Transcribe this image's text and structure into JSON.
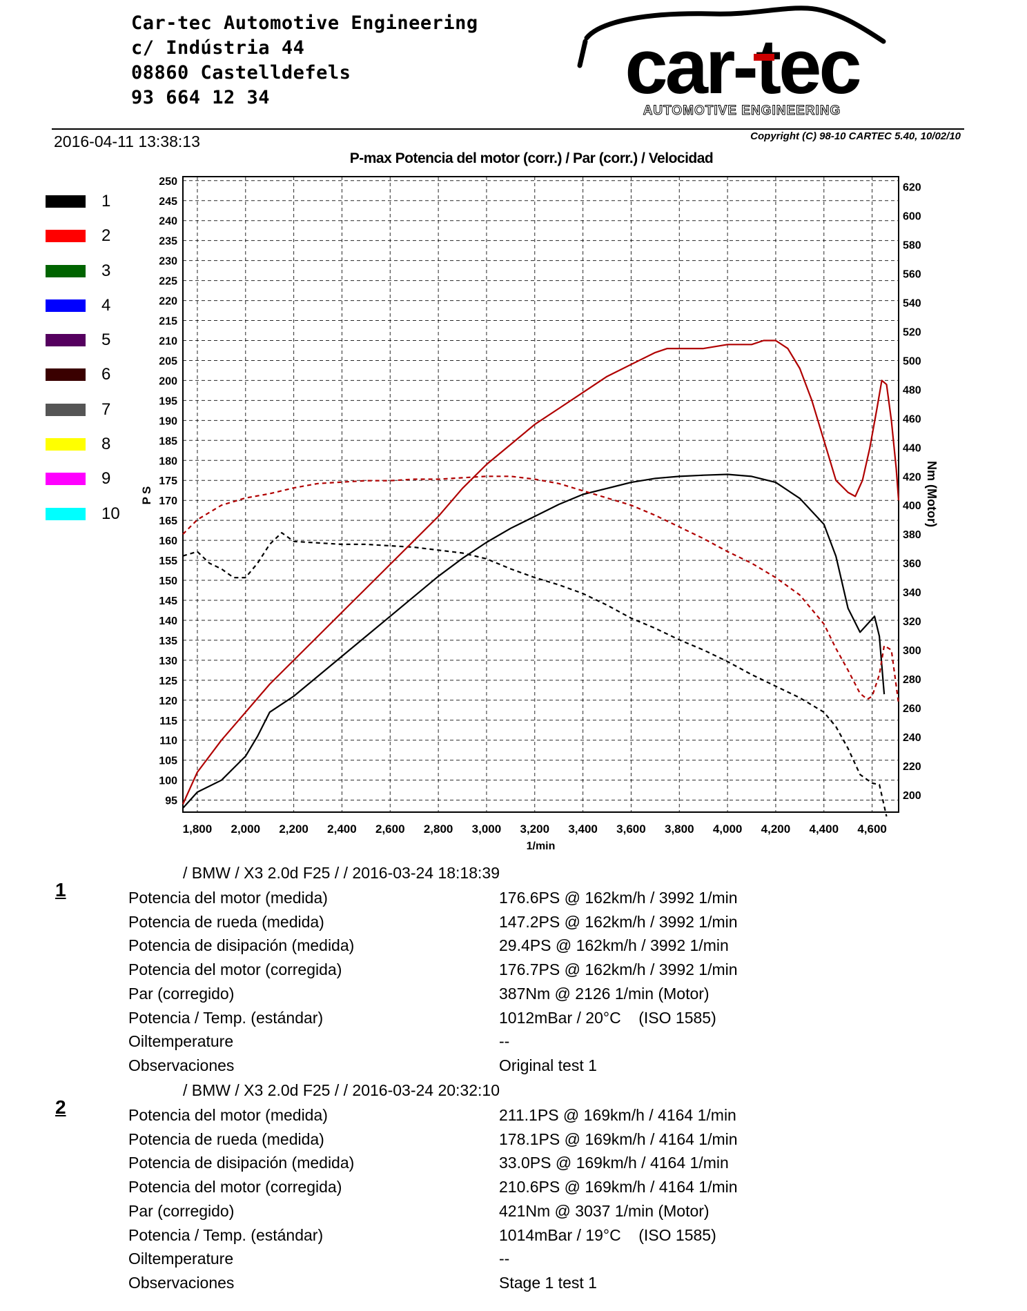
{
  "header": {
    "company_lines": [
      "Car-tec Automotive Engineering",
      "c/ Indústria 44",
      "08860 Castelldefels",
      "93 664 12 34"
    ],
    "logo_text": "car-tec",
    "logo_subtext": "AUTOMOTIVE ENGINEERING",
    "timestamp": "2016-04-11 13:38:13",
    "copyright": "Copyright (C) 98-10 CARTEC 5.40, 10/02/10"
  },
  "legend": [
    {
      "label": "1",
      "color": "#000000"
    },
    {
      "label": "2",
      "color": "#ff0000"
    },
    {
      "label": "3",
      "color": "#006400"
    },
    {
      "label": "4",
      "color": "#0000ff"
    },
    {
      "label": "5",
      "color": "#55005f"
    },
    {
      "label": "6",
      "color": "#3a0000"
    },
    {
      "label": "7",
      "color": "#555555"
    },
    {
      "label": "8",
      "color": "#ffff00"
    },
    {
      "label": "9",
      "color": "#ff00ff"
    },
    {
      "label": "10",
      "color": "#00ffff"
    }
  ],
  "chart_data": {
    "type": "line",
    "title": "P-max Potencia del motor (corr.) / Par (corr.) / Velocidad",
    "xlabel": "1/min",
    "ylabel_left": "PS",
    "ylabel_right": "Nm (Motor)",
    "xlim": [
      1740,
      4710
    ],
    "ylim_left": [
      92,
      251
    ],
    "ylim_right": [
      188,
      627
    ],
    "x_ticks": [
      1800,
      2000,
      2200,
      2400,
      2600,
      2800,
      3000,
      3200,
      3400,
      3600,
      3800,
      4000,
      4200,
      4400,
      4600
    ],
    "x_tick_labels": [
      "1,800",
      "2,000",
      "2,200",
      "2,400",
      "2,600",
      "2,800",
      "3,000",
      "3,200",
      "3,400",
      "3,600",
      "3,800",
      "4,000",
      "4,200",
      "4,400",
      "4,600"
    ],
    "y_left_ticks": [
      95,
      100,
      105,
      110,
      115,
      120,
      125,
      130,
      135,
      140,
      145,
      150,
      155,
      160,
      165,
      170,
      175,
      180,
      185,
      190,
      195,
      200,
      205,
      210,
      215,
      220,
      225,
      230,
      235,
      240,
      245,
      250
    ],
    "y_right_ticks": [
      200,
      220,
      240,
      260,
      280,
      300,
      320,
      340,
      360,
      380,
      400,
      420,
      440,
      460,
      480,
      500,
      520,
      540,
      560,
      580,
      600,
      620
    ],
    "grid": true,
    "series": [
      {
        "name": "1",
        "kind": "power",
        "axis": "left",
        "color": "#000000",
        "dash": false,
        "x": [
          1740,
          1800,
          1900,
          2000,
          2050,
          2100,
          2150,
          2200,
          2300,
          2400,
          2500,
          2600,
          2700,
          2800,
          2900,
          3000,
          3100,
          3200,
          3300,
          3400,
          3500,
          3600,
          3700,
          3800,
          3900,
          4000,
          4100,
          4200,
          4300,
          4400,
          4450,
          4500,
          4550,
          4580,
          4610,
          4630,
          4650
        ],
        "y": [
          93,
          97,
          100,
          106,
          111,
          117,
          119,
          121,
          126,
          131,
          136,
          141,
          146,
          151,
          155.5,
          159.5,
          163,
          166,
          169,
          171.5,
          173,
          174.5,
          175.5,
          176,
          176.3,
          176.5,
          176,
          174.5,
          170.5,
          164,
          156,
          143,
          137,
          139,
          141,
          136,
          121.5
        ]
      },
      {
        "name": "1",
        "kind": "torque",
        "axis": "right",
        "color": "#000000",
        "dash": true,
        "x": [
          1740,
          1800,
          1850,
          1900,
          1950,
          2000,
          2050,
          2100,
          2150,
          2200,
          2300,
          2400,
          2500,
          2600,
          2700,
          2800,
          2900,
          3000,
          3100,
          3200,
          3300,
          3400,
          3500,
          3600,
          3700,
          3800,
          3900,
          4000,
          4100,
          4200,
          4300,
          4400,
          4450,
          4500,
          4550,
          4600,
          4630,
          4660
        ],
        "y": [
          365,
          368,
          360,
          356,
          350,
          350,
          360,
          373,
          381,
          375,
          374,
          373,
          373,
          372,
          371,
          369,
          367,
          363,
          356,
          350,
          345,
          339,
          331,
          322,
          315,
          307,
          300,
          292,
          283,
          275,
          267,
          257,
          247,
          232,
          214,
          208,
          207,
          185
        ]
      },
      {
        "name": "2",
        "kind": "power",
        "axis": "left",
        "color": "#b00000",
        "dash": false,
        "x": [
          1740,
          1800,
          1900,
          2000,
          2100,
          2200,
          2300,
          2400,
          2500,
          2600,
          2700,
          2800,
          2900,
          3000,
          3100,
          3200,
          3300,
          3400,
          3500,
          3600,
          3700,
          3750,
          3800,
          3900,
          4000,
          4100,
          4150,
          4200,
          4250,
          4300,
          4350,
          4400,
          4450,
          4500,
          4530,
          4560,
          4590,
          4620,
          4640,
          4660,
          4680,
          4700,
          4710
        ],
        "y": [
          94,
          102,
          110,
          117,
          124,
          130,
          136,
          142,
          148,
          154,
          160,
          166,
          173,
          179,
          184,
          189,
          193,
          197,
          201,
          204,
          207,
          208,
          208,
          208,
          209,
          209,
          210,
          210,
          208,
          203,
          195,
          185,
          175,
          172,
          171,
          175,
          183,
          193,
          200,
          199,
          190,
          178,
          170
        ]
      },
      {
        "name": "2",
        "kind": "torque",
        "axis": "right",
        "color": "#b00000",
        "dash": true,
        "x": [
          1740,
          1800,
          1900,
          2000,
          2100,
          2200,
          2300,
          2400,
          2500,
          2600,
          2700,
          2800,
          2900,
          3000,
          3100,
          3200,
          3300,
          3400,
          3500,
          3600,
          3700,
          3800,
          3900,
          4000,
          4100,
          4200,
          4300,
          4400,
          4450,
          4500,
          4550,
          4580,
          4600,
          4630,
          4650,
          4680,
          4710
        ],
        "y": [
          380,
          390,
          400,
          405,
          408,
          412,
          415,
          416,
          417,
          417,
          418,
          418,
          419,
          420,
          420,
          418,
          415,
          410,
          405,
          400,
          393,
          385,
          377,
          368,
          360,
          350,
          338,
          318,
          301,
          286,
          270,
          266,
          268,
          283,
          303,
          300,
          263
        ]
      }
    ]
  },
  "runs": [
    {
      "number": "1",
      "title": "/ BMW / X3 2.0d F25 /  / 2016-03-24 18:18:39",
      "rows": [
        {
          "label": "Potencia del motor (medida)",
          "value": "176.6PS @ 162km/h / 3992 1/min"
        },
        {
          "label": "Potencia de rueda (medida)",
          "value": "147.2PS @ 162km/h / 3992 1/min"
        },
        {
          "label": "Potencia de disipación (medida)",
          "value": "29.4PS @ 162km/h / 3992 1/min"
        },
        {
          "label": "Potencia del motor (corregida)",
          "value": "176.7PS @ 162km/h / 3992 1/min"
        },
        {
          "label": "Par (corregido)",
          "value": "387Nm @ 2126 1/min (Motor)"
        },
        {
          "label": "Potencia / Temp. (estándar)",
          "value": "1012mBar / 20°C    (ISO 1585)"
        },
        {
          "label": "Oiltemperature",
          "value": "--"
        },
        {
          "label": "Observaciones",
          "value": "Original test 1"
        }
      ]
    },
    {
      "number": "2",
      "title": "/ BMW / X3 2.0d F25 /  / 2016-03-24 20:32:10",
      "rows": [
        {
          "label": "Potencia del motor (medida)",
          "value": "211.1PS @ 169km/h / 4164 1/min"
        },
        {
          "label": "Potencia de rueda (medida)",
          "value": "178.1PS @ 169km/h / 4164 1/min"
        },
        {
          "label": "Potencia de disipación (medida)",
          "value": "33.0PS @ 169km/h / 4164 1/min"
        },
        {
          "label": "Potencia del motor (corregida)",
          "value": "210.6PS @ 169km/h / 4164 1/min"
        },
        {
          "label": "Par (corregido)",
          "value": "421Nm @ 3037 1/min (Motor)"
        },
        {
          "label": "Potencia / Temp. (estándar)",
          "value": "1014mBar / 19°C    (ISO 1585)"
        },
        {
          "label": "Oiltemperature",
          "value": "--"
        },
        {
          "label": "Observaciones",
          "value": "Stage 1 test 1"
        }
      ]
    }
  ]
}
